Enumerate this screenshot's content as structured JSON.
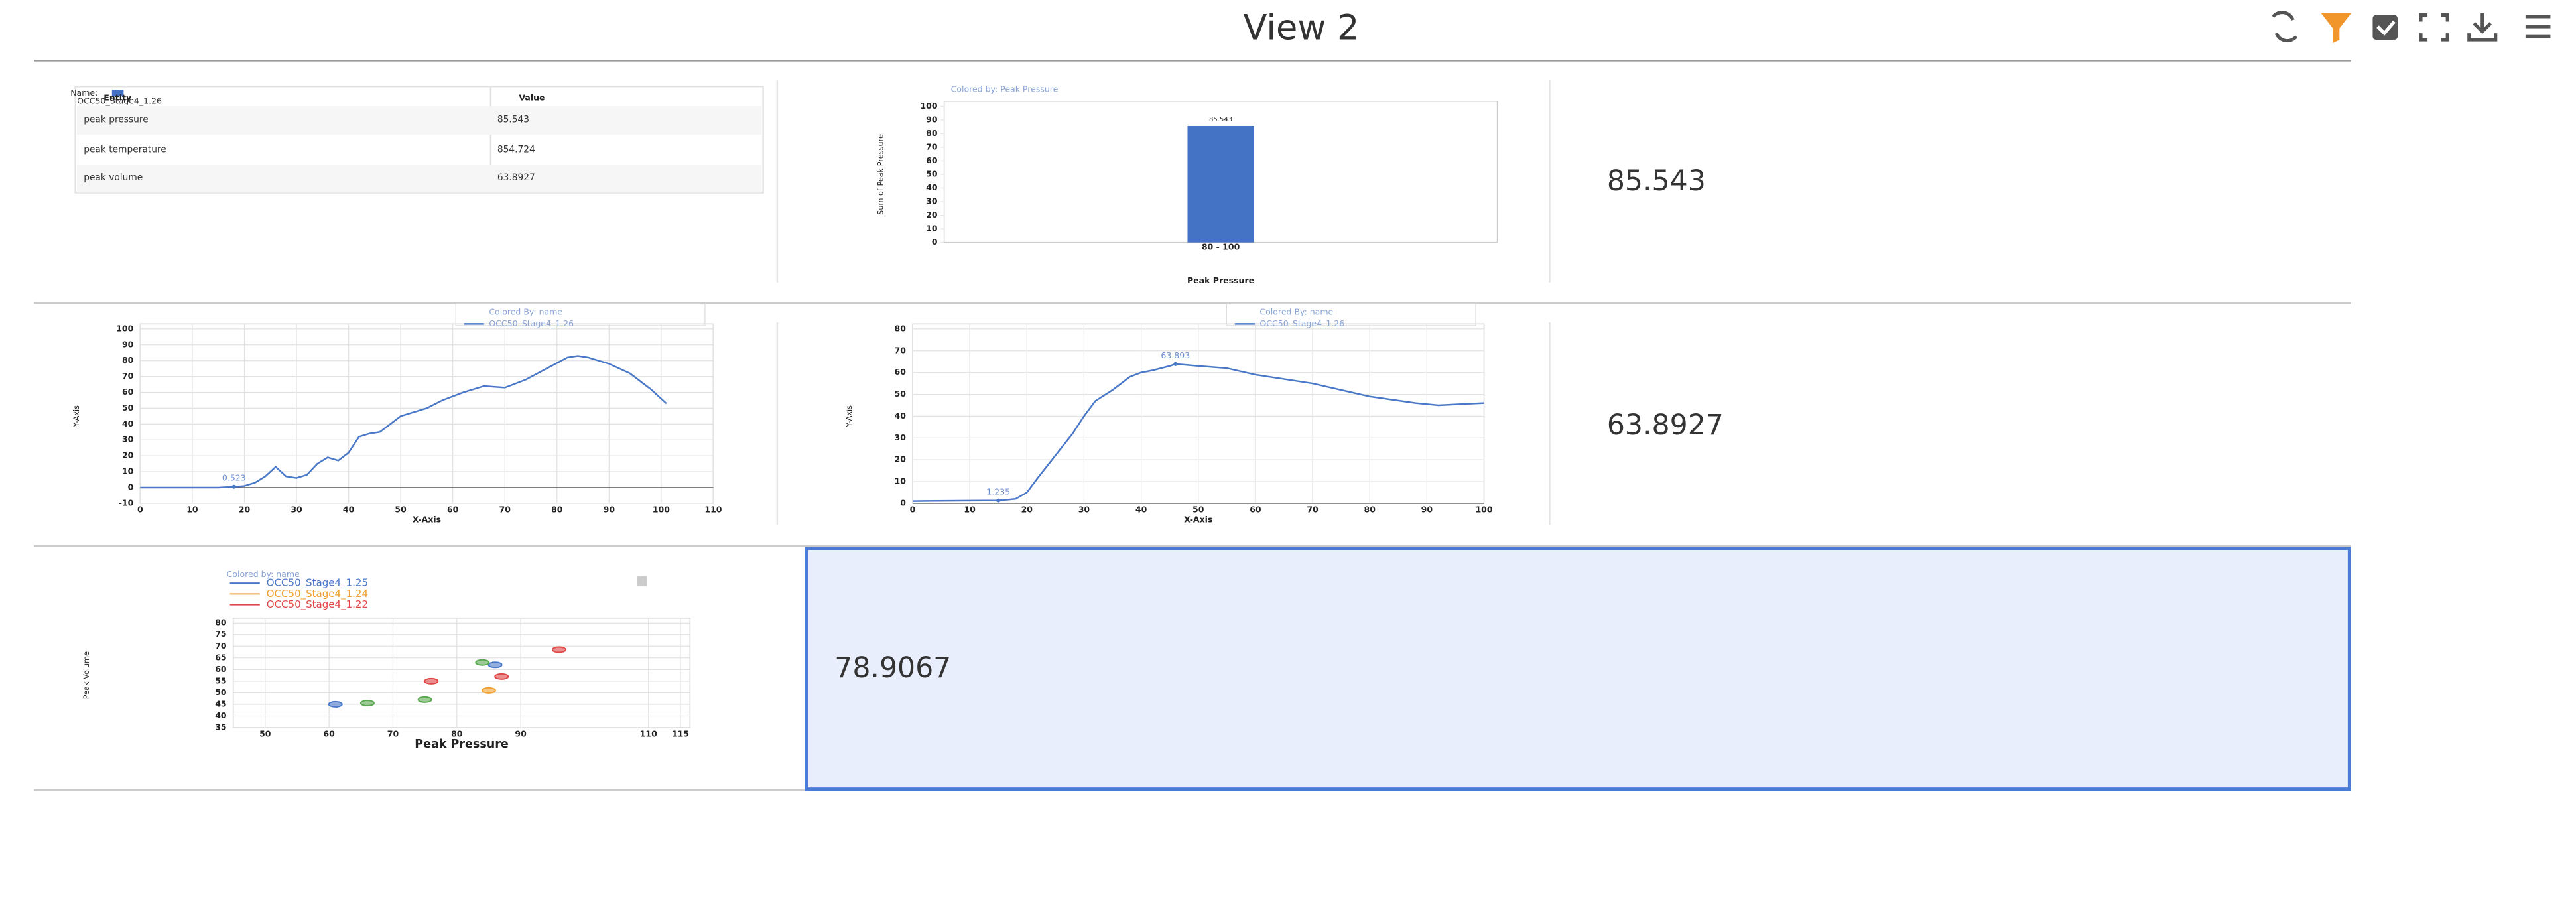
{
  "header": {
    "title": "View 2"
  },
  "table": {
    "legend_label": "Name:",
    "legend_entry": "OCC50_Stage4_1.26",
    "columns": [
      "Entity",
      "Value"
    ],
    "rows": [
      [
        "peak pressure",
        "85.543"
      ],
      [
        "peak temperature",
        "854.724"
      ],
      [
        "peak volume",
        "63.8927"
      ]
    ]
  },
  "kpis": [
    "85.543",
    "63.8927",
    "78.9067"
  ],
  "chart_data": [
    {
      "type": "bar",
      "legend_title": "Colored by: Peak Pressure",
      "categories": [
        "80 - 100"
      ],
      "values": [
        85.543
      ],
      "value_labels": [
        "85.543"
      ],
      "color": "#4472c4",
      "ylim": [
        0,
        100
      ],
      "yticks": [
        0,
        10,
        20,
        30,
        40,
        50,
        60,
        70,
        80,
        90,
        100
      ],
      "xlabel": "Peak Pressure",
      "ylabel": "Sum of Peak Pressure",
      "grid": false
    },
    {
      "type": "line",
      "legend_title": "Colored By: name",
      "xlabel": "X-Axis",
      "ylabel": "Y-Axis",
      "grid": true,
      "x": [
        0,
        5,
        10,
        15,
        18,
        20,
        22,
        24,
        26,
        28,
        30,
        32,
        34,
        36,
        38,
        40,
        42,
        44,
        46,
        48,
        50,
        52,
        55,
        58,
        62,
        66,
        70,
        74,
        78,
        82,
        84,
        86,
        90,
        94,
        98,
        101
      ],
      "series": [
        {
          "name": "OCC50_Stage4_1.26",
          "color": "#4a78c8",
          "values": [
            0,
            0,
            0,
            0,
            0.5,
            1,
            3,
            7,
            13,
            7,
            6,
            8,
            15,
            19,
            17,
            22,
            32,
            34,
            35,
            40,
            45,
            47,
            50,
            55,
            60,
            64,
            63,
            68,
            75,
            82,
            83,
            82,
            78,
            72,
            62,
            53
          ]
        }
      ],
      "annotations": [
        {
          "text": "0.523",
          "x": 18,
          "y": 0.5
        }
      ],
      "xlim": [
        0,
        110
      ],
      "xticks": [
        0,
        10,
        20,
        30,
        40,
        50,
        60,
        70,
        80,
        90,
        100,
        110
      ],
      "ylim": [
        -10,
        100
      ],
      "yticks": [
        -10,
        0,
        10,
        20,
        30,
        40,
        50,
        60,
        70,
        80,
        90,
        100
      ]
    },
    {
      "type": "line",
      "legend_title": "Colored By: name",
      "xlabel": "X-Axis",
      "ylabel": "Y-Axis",
      "grid": true,
      "x": [
        0,
        10,
        15,
        18,
        20,
        22,
        25,
        28,
        30,
        32,
        35,
        38,
        40,
        42,
        45,
        46,
        50,
        55,
        60,
        70,
        80,
        88,
        92,
        96,
        100
      ],
      "series": [
        {
          "name": "OCC50_Stage4_1.26",
          "color": "#4a78c8",
          "values": [
            1,
            1.2,
            1.3,
            2,
            5,
            12,
            22,
            32,
            40,
            47,
            52,
            58,
            60,
            61,
            63,
            63.9,
            63,
            62,
            59,
            55,
            49,
            46,
            45,
            45.5,
            46
          ]
        }
      ],
      "annotations": [
        {
          "text": "1.235",
          "x": 15,
          "y": 1.3
        },
        {
          "text": "63.893",
          "x": 46,
          "y": 63.9
        }
      ],
      "xlim": [
        0,
        100
      ],
      "xticks": [
        0,
        10,
        20,
        30,
        40,
        50,
        60,
        70,
        80,
        90,
        100
      ],
      "ylim": [
        0,
        80
      ],
      "yticks": [
        0,
        10,
        20,
        30,
        40,
        50,
        60,
        70,
        80
      ]
    },
    {
      "type": "scatter",
      "legend_title": "Colored by: name",
      "xlabel": "Peak Pressure",
      "ylabel": "Peak Volume",
      "grid": true,
      "series": [
        {
          "name": "OCC50_Stage4_1.25",
          "color": "#4a78c8",
          "x": [
            61,
            86
          ],
          "values": [
            45,
            62
          ]
        },
        {
          "name": "OCC50_Stage4_1.24",
          "color": "#f0a030",
          "x": [
            85
          ],
          "values": [
            51
          ]
        },
        {
          "name": "OCC50_Stage4_1.22",
          "color": "#e04848",
          "x": [
            76,
            87,
            96
          ],
          "values": [
            55,
            57,
            68.5
          ]
        },
        {
          "color": "#5aa850",
          "x": [
            66,
            75,
            84
          ],
          "values": [
            45.5,
            47,
            63
          ]
        }
      ],
      "xlim": [
        45,
        116.5
      ],
      "xticks": [
        50,
        60,
        70,
        80,
        90,
        110,
        115
      ],
      "ylim": [
        35,
        80
      ],
      "yticks": [
        35,
        40,
        45,
        50,
        55,
        60,
        65,
        70,
        75,
        80
      ]
    }
  ]
}
